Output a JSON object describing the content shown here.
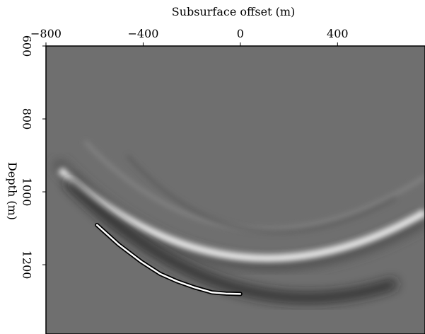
{
  "chart_data": {
    "type": "line",
    "xlabel": "Subsurface offset (m)",
    "ylabel": "Depth (m)",
    "x": [
      -590,
      -500,
      -407,
      -330,
      -262,
      -190,
      -116,
      -60,
      0
    ],
    "values": [
      1091,
      1145,
      1192,
      1225,
      1245,
      1262,
      1276,
      1279,
      1280
    ],
    "color": "#ffffff",
    "xlim": [
      -800,
      760
    ],
    "ylim": [
      600,
      1390
    ],
    "y_inverted": true,
    "xticks": [
      {
        "value": -800,
        "label": "−800"
      },
      {
        "value": -400,
        "label": "−400"
      },
      0,
      400
    ],
    "yticks": [
      600,
      800,
      1000,
      1200
    ]
  }
}
